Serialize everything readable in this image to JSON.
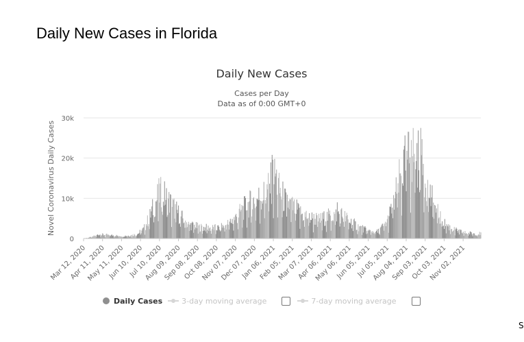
{
  "slide_title": "Daily New Cases in Florida",
  "corner_mark": "S",
  "legend": {
    "daily_cases": "Daily Cases",
    "avg3": "3-day moving average",
    "avg7": "7-day moving average"
  },
  "chart_data": {
    "type": "bar",
    "title": "Daily New Cases",
    "subtitle_lines": [
      "Cases per Day",
      "Data as of 0:00 GMT+0"
    ],
    "ylabel": "Novel Coronavirus Daily Cases",
    "ylim": [
      0,
      30000
    ],
    "yticks": [
      0,
      10000,
      20000,
      30000
    ],
    "ytick_labels": [
      "0",
      "10k",
      "20k",
      "30k"
    ],
    "x_range": [
      "2020-03-12",
      "2021-11-30"
    ],
    "xtick_labels": [
      "Mar 12, 2020",
      "Apr 11, 2020",
      "May 11, 2020",
      "Jun 10, 2020",
      "Jul 10, 2020",
      "Aug 09, 2020",
      "Sep 08, 2020",
      "Oct 08, 2020",
      "Nov 07, 2020",
      "Dec 07, 2020",
      "Jan 06, 2021",
      "Feb 05, 2021",
      "Mar 07, 2021",
      "Apr 06, 2021",
      "May 06, 2021",
      "Jun 05, 2021",
      "Jul 05, 2021",
      "Aug 04, 2021",
      "Sep 03, 2021",
      "Oct 03, 2021",
      "Nov 02, 2021"
    ],
    "grid": true,
    "legend_position": "bottom",
    "series": [
      {
        "name": "Daily Cases",
        "color": "#999999",
        "points": [
          [
            "2020-03-12",
            0
          ],
          [
            "2020-03-25",
            400
          ],
          [
            "2020-04-05",
            1100
          ],
          [
            "2020-04-20",
            900
          ],
          [
            "2020-05-10",
            700
          ],
          [
            "2020-05-25",
            800
          ],
          [
            "2020-06-05",
            1200
          ],
          [
            "2020-06-15",
            2500
          ],
          [
            "2020-06-25",
            6000
          ],
          [
            "2020-07-04",
            10000
          ],
          [
            "2020-07-12",
            12500
          ],
          [
            "2020-07-20",
            11000
          ],
          [
            "2020-08-01",
            8500
          ],
          [
            "2020-08-12",
            6000
          ],
          [
            "2020-08-25",
            3800
          ],
          [
            "2020-09-10",
            3000
          ],
          [
            "2020-09-25",
            2800
          ],
          [
            "2020-10-10",
            2800
          ],
          [
            "2020-10-25",
            3800
          ],
          [
            "2020-11-07",
            5500
          ],
          [
            "2020-11-20",
            8000
          ],
          [
            "2020-12-01",
            9500
          ],
          [
            "2020-12-15",
            11000
          ],
          [
            "2020-12-25",
            12000
          ],
          [
            "2021-01-03",
            15000
          ],
          [
            "2021-01-08",
            18000
          ],
          [
            "2021-01-15",
            13000
          ],
          [
            "2021-01-25",
            10000
          ],
          [
            "2021-02-05",
            8500
          ],
          [
            "2021-02-20",
            6500
          ],
          [
            "2021-03-07",
            5500
          ],
          [
            "2021-03-20",
            5000
          ],
          [
            "2021-04-06",
            6000
          ],
          [
            "2021-04-20",
            6800
          ],
          [
            "2021-05-06",
            4800
          ],
          [
            "2021-05-20",
            3200
          ],
          [
            "2021-06-05",
            2000
          ],
          [
            "2021-06-20",
            1800
          ],
          [
            "2021-07-05",
            4500
          ],
          [
            "2021-07-15",
            9500
          ],
          [
            "2021-07-25",
            16000
          ],
          [
            "2021-08-04",
            21000
          ],
          [
            "2021-08-14",
            23000
          ],
          [
            "2021-08-22",
            22000
          ],
          [
            "2021-09-01",
            18000
          ],
          [
            "2021-09-10",
            12000
          ],
          [
            "2021-09-20",
            7500
          ],
          [
            "2021-10-03",
            4000
          ],
          [
            "2021-10-20",
            2200
          ],
          [
            "2021-11-05",
            1500
          ],
          [
            "2021-11-30",
            1300
          ]
        ],
        "peaks": [
          [
            "2020-07-12",
            15300
          ],
          [
            "2021-01-04",
            20800
          ],
          [
            "2021-01-08",
            19800
          ],
          [
            "2021-04-17",
            9000
          ],
          [
            "2021-08-12",
            24500
          ],
          [
            "2021-08-27",
            27500
          ]
        ]
      }
    ]
  }
}
